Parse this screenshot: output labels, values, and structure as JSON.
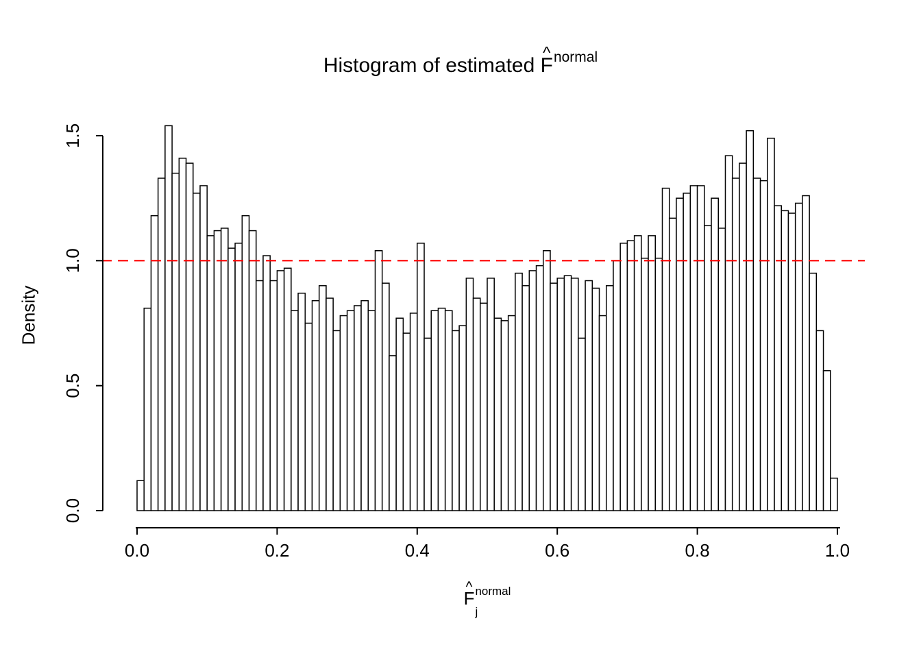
{
  "title_parts": {
    "prefix": "Histogram of estimated ",
    "symbol": "F",
    "hat": "^",
    "superscript": "normal"
  },
  "xlabel_parts": {
    "symbol": "F",
    "hat": "^",
    "subscript": "j",
    "superscript": "normal"
  },
  "chart_data": {
    "type": "bar",
    "subtype": "histogram",
    "title": "Histogram of estimated F^normal",
    "xlabel": "F_j^normal",
    "ylabel": "Density",
    "xlim": [
      0,
      1
    ],
    "ylim": [
      0,
      1.5
    ],
    "x_ticks": [
      "0.0",
      "0.2",
      "0.4",
      "0.6",
      "0.8",
      "1.0"
    ],
    "y_ticks": [
      "0.0",
      "0.5",
      "1.0",
      "1.5"
    ],
    "grid": false,
    "legend": "none",
    "bin_start": 0,
    "bin_width": 0.01,
    "values": [
      0.12,
      0.81,
      1.18,
      1.33,
      1.54,
      1.35,
      1.41,
      1.39,
      1.27,
      1.3,
      1.1,
      1.12,
      1.13,
      1.05,
      1.07,
      1.18,
      1.12,
      0.92,
      1.02,
      0.92,
      0.96,
      0.97,
      0.8,
      0.87,
      0.75,
      0.84,
      0.9,
      0.85,
      0.72,
      0.78,
      0.8,
      0.82,
      0.84,
      0.8,
      1.04,
      0.91,
      0.62,
      0.77,
      0.71,
      0.79,
      1.07,
      0.69,
      0.8,
      0.81,
      0.8,
      0.72,
      0.74,
      0.93,
      0.85,
      0.83,
      0.93,
      0.77,
      0.76,
      0.78,
      0.95,
      0.9,
      0.96,
      0.98,
      1.04,
      0.91,
      0.93,
      0.94,
      0.93,
      0.69,
      0.92,
      0.89,
      0.78,
      0.9,
      1.0,
      1.07,
      1.08,
      1.1,
      1.01,
      1.1,
      1.01,
      1.29,
      1.17,
      1.25,
      1.27,
      1.3,
      1.3,
      1.14,
      1.25,
      1.13,
      1.42,
      1.33,
      1.39,
      1.52,
      1.33,
      1.32,
      1.49,
      1.22,
      1.2,
      1.19,
      1.23,
      1.26,
      0.95,
      0.72,
      0.56,
      0.13
    ],
    "reference_line": {
      "y": 1.0,
      "color": "#ff0000",
      "style": "dashed"
    },
    "bar_fill": "#ffffff",
    "bar_stroke": "#000000",
    "axis_color": "#000000"
  }
}
